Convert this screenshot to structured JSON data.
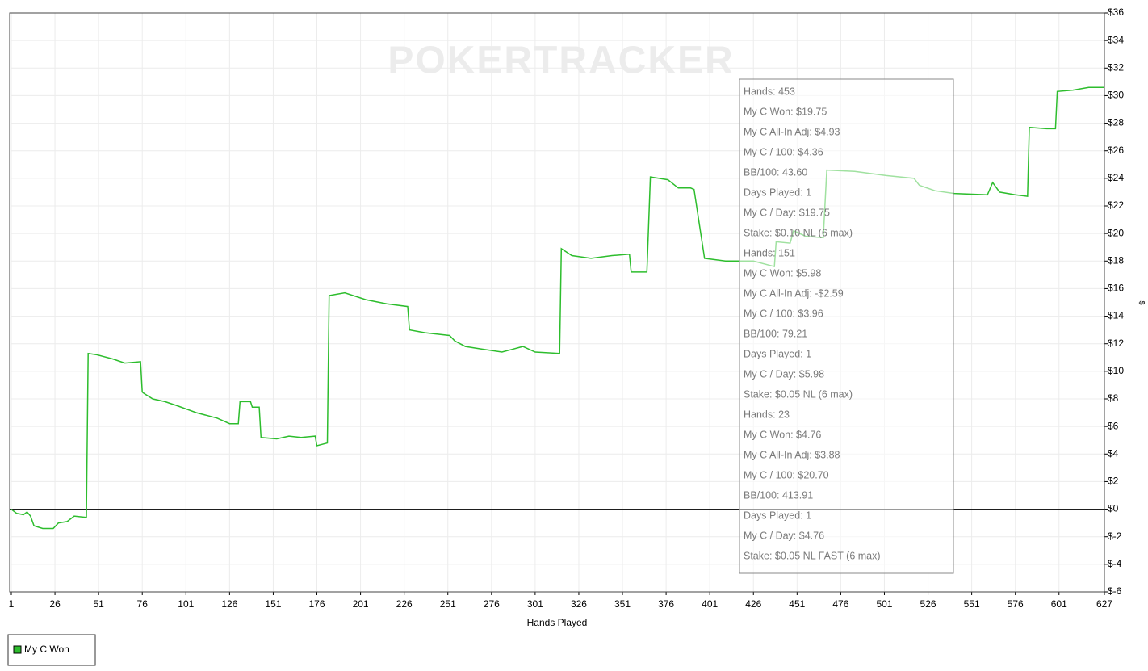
{
  "chart_data": {
    "type": "line",
    "watermark": "POKERTRACKER",
    "x_label": "Hands Played",
    "y_label": "$",
    "x": [
      1,
      4,
      8,
      10,
      12,
      14,
      19,
      25,
      28,
      33,
      37,
      44,
      45,
      50,
      59,
      66,
      75,
      76,
      77,
      82,
      89,
      96,
      107,
      119,
      126,
      131,
      132,
      138,
      139,
      143,
      144,
      153,
      160,
      167,
      175,
      176,
      182,
      183,
      192,
      204,
      216,
      228,
      229,
      238,
      252,
      255,
      261,
      271,
      282,
      294,
      301,
      315,
      316,
      322,
      333,
      345,
      355,
      356,
      365,
      367,
      377,
      383,
      390,
      392,
      398,
      410,
      426,
      438,
      439,
      447,
      449,
      456,
      466,
      468,
      484,
      502,
      518,
      521,
      530,
      541,
      560,
      563,
      567,
      576,
      583,
      584,
      594,
      599,
      600,
      609,
      618,
      627
    ],
    "series": [
      {
        "name": "My C Won",
        "color": "#2dbd2d",
        "values": [
          0,
          -0.3,
          -0.4,
          -0.2,
          -0.5,
          -1.2,
          -1.4,
          -1.4,
          -1.0,
          -0.9,
          -0.5,
          -0.6,
          11.3,
          11.2,
          10.9,
          10.6,
          10.7,
          8.5,
          8.4,
          8.0,
          7.8,
          7.5,
          7.0,
          6.6,
          6.2,
          6.2,
          7.8,
          7.8,
          7.4,
          7.4,
          5.2,
          5.1,
          5.3,
          5.2,
          5.3,
          4.6,
          4.8,
          15.5,
          15.7,
          15.2,
          14.9,
          14.7,
          13.0,
          12.8,
          12.6,
          12.2,
          11.8,
          11.6,
          11.4,
          11.8,
          11.4,
          11.3,
          18.9,
          18.4,
          18.2,
          18.4,
          18.5,
          17.2,
          17.2,
          24.1,
          23.9,
          23.3,
          23.3,
          23.2,
          18.2,
          18.0,
          18.0,
          17.6,
          19.4,
          19.3,
          20.2,
          19.8,
          19.7,
          24.6,
          24.5,
          24.2,
          24.0,
          23.5,
          23.1,
          22.9,
          22.8,
          23.7,
          23.0,
          22.8,
          22.7,
          27.7,
          27.6,
          27.6,
          30.3,
          30.4,
          30.6,
          30.6
        ]
      }
    ],
    "xlim": [
      1,
      627
    ],
    "xticks": [
      1,
      26,
      51,
      76,
      101,
      126,
      151,
      176,
      201,
      226,
      251,
      276,
      301,
      326,
      351,
      376,
      401,
      426,
      451,
      476,
      501,
      526,
      551,
      576,
      601,
      627
    ],
    "ylim": [
      -6,
      36
    ],
    "yticks": [
      {
        "value": -6,
        "label": "$-6"
      },
      {
        "value": -4,
        "label": "$-4"
      },
      {
        "value": -2,
        "label": "$-2"
      },
      {
        "value": 0,
        "label": "$0"
      },
      {
        "value": 2,
        "label": "$2"
      },
      {
        "value": 4,
        "label": "$4"
      },
      {
        "value": 6,
        "label": "$6"
      },
      {
        "value": 8,
        "label": "$8"
      },
      {
        "value": 10,
        "label": "$10"
      },
      {
        "value": 12,
        "label": "$12"
      },
      {
        "value": 14,
        "label": "$14"
      },
      {
        "value": 16,
        "label": "$16"
      },
      {
        "value": 18,
        "label": "$18"
      },
      {
        "value": 20,
        "label": "$20"
      },
      {
        "value": 22,
        "label": "$22"
      },
      {
        "value": 24,
        "label": "$24"
      },
      {
        "value": 26,
        "label": "$26"
      },
      {
        "value": 28,
        "label": "$28"
      },
      {
        "value": 30,
        "label": "$30"
      },
      {
        "value": 32,
        "label": "$32"
      },
      {
        "value": 34,
        "label": "$34"
      },
      {
        "value": 36,
        "label": "$36"
      }
    ],
    "grid": true,
    "tooltip": [
      "Hands: 453",
      "My C Won: $19.75",
      "My C All-In Adj: $4.93",
      "My C / 100: $4.36",
      "BB/100: 43.60",
      "Days Played: 1",
      "My C / Day: $19.75",
      "Stake: $0.10 NL (6 max)",
      "Hands: 151",
      "My C Won: $5.98",
      "My C All-In Adj: -$2.59",
      "My C / 100: $3.96",
      "BB/100: 79.21",
      "Days Played: 1",
      "My C / Day: $5.98",
      "Stake: $0.05 NL (6 max)",
      "Hands: 23",
      "My C Won: $4.76",
      "My C All-In Adj: $3.88",
      "My C / 100: $20.70",
      "BB/100: 413.91",
      "Days Played: 1",
      "My C / Day: $4.76",
      "Stake: $0.05 NL FAST (6 max)"
    ]
  }
}
